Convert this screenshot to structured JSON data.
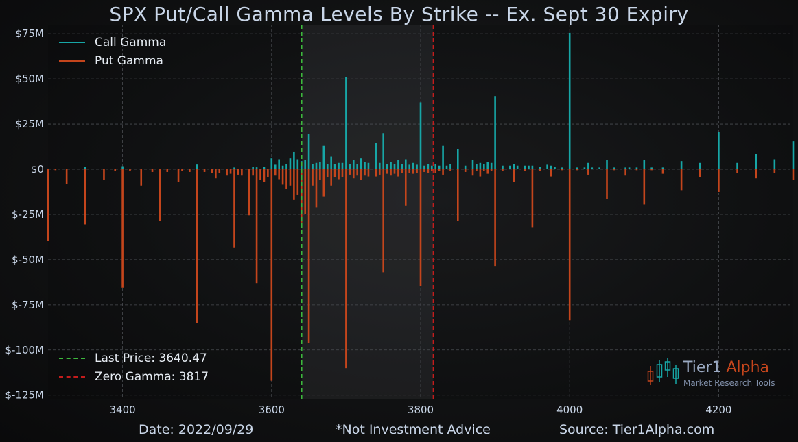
{
  "chart_data": {
    "type": "bar",
    "title": "SPX Put/Call Gamma Levels By Strike -- Ex. Sept 30 Expiry",
    "xlabel": "",
    "ylabel": "",
    "xlim": [
      3300,
      4300
    ],
    "ylim": [
      -127,
      80
    ],
    "x_ticks": [
      3400,
      3600,
      3800,
      4000,
      4200
    ],
    "y_ticks": [
      {
        "value": 75,
        "label": "$75M"
      },
      {
        "value": 50,
        "label": "$50M"
      },
      {
        "value": 25,
        "label": "$25M"
      },
      {
        "value": 0,
        "label": "$0"
      },
      {
        "value": -25,
        "label": "$-25M"
      },
      {
        "value": -50,
        "label": "$-50M"
      },
      {
        "value": -75,
        "label": "$-75M"
      },
      {
        "value": -100,
        "label": "$-100M"
      },
      {
        "value": -125,
        "label": "$-125M"
      }
    ],
    "grid": true,
    "legend_position": "top-left",
    "series": [
      {
        "name": "Call Gamma",
        "color": "#17a6a6",
        "points": [
          [
            3300,
            0.4
          ],
          [
            3350,
            1.5
          ],
          [
            3400,
            1.7
          ],
          [
            3500,
            2.6
          ],
          [
            3550,
            1
          ],
          [
            3575,
            1.3
          ],
          [
            3580,
            1.1
          ],
          [
            3590,
            1.3
          ],
          [
            3600,
            6
          ],
          [
            3605,
            2.5
          ],
          [
            3610,
            5.5
          ],
          [
            3615,
            2
          ],
          [
            3620,
            3
          ],
          [
            3625,
            6
          ],
          [
            3630,
            9.5
          ],
          [
            3635,
            5.5
          ],
          [
            3640,
            4.5
          ],
          [
            3645,
            5
          ],
          [
            3650,
            19.5
          ],
          [
            3655,
            3
          ],
          [
            3660,
            3.5
          ],
          [
            3665,
            4
          ],
          [
            3670,
            13
          ],
          [
            3675,
            3
          ],
          [
            3680,
            7
          ],
          [
            3685,
            3
          ],
          [
            3690,
            3.5
          ],
          [
            3695,
            3.5
          ],
          [
            3700,
            51
          ],
          [
            3705,
            3
          ],
          [
            3710,
            5
          ],
          [
            3715,
            3
          ],
          [
            3720,
            6
          ],
          [
            3725,
            4
          ],
          [
            3730,
            3.5
          ],
          [
            3740,
            14.5
          ],
          [
            3745,
            3.5
          ],
          [
            3750,
            20
          ],
          [
            3755,
            3
          ],
          [
            3760,
            4
          ],
          [
            3765,
            3
          ],
          [
            3770,
            5
          ],
          [
            3775,
            3
          ],
          [
            3780,
            5.5
          ],
          [
            3785,
            2.5
          ],
          [
            3790,
            3.5
          ],
          [
            3795,
            2.5
          ],
          [
            3800,
            37
          ],
          [
            3805,
            2
          ],
          [
            3810,
            3
          ],
          [
            3815,
            2
          ],
          [
            3820,
            3
          ],
          [
            3825,
            2
          ],
          [
            3830,
            13
          ],
          [
            3835,
            2
          ],
          [
            3840,
            3
          ],
          [
            3850,
            11
          ],
          [
            3860,
            2
          ],
          [
            3870,
            5
          ],
          [
            3875,
            3
          ],
          [
            3880,
            3.5
          ],
          [
            3885,
            3
          ],
          [
            3890,
            4
          ],
          [
            3895,
            3.5
          ],
          [
            3900,
            40.5
          ],
          [
            3910,
            2
          ],
          [
            3920,
            2
          ],
          [
            3925,
            3
          ],
          [
            3930,
            2
          ],
          [
            3940,
            2
          ],
          [
            3945,
            2
          ],
          [
            3950,
            2
          ],
          [
            3960,
            1.5
          ],
          [
            3970,
            2.5
          ],
          [
            3975,
            2
          ],
          [
            3980,
            1.5
          ],
          [
            3990,
            1
          ],
          [
            4000,
            75.5
          ],
          [
            4010,
            1
          ],
          [
            4020,
            1
          ],
          [
            4025,
            3.5
          ],
          [
            4030,
            1
          ],
          [
            4040,
            1
          ],
          [
            4050,
            5
          ],
          [
            4060,
            1
          ],
          [
            4075,
            1
          ],
          [
            4080,
            1
          ],
          [
            4090,
            1
          ],
          [
            4100,
            5
          ],
          [
            4110,
            1
          ],
          [
            4125,
            1
          ],
          [
            4150,
            4.5
          ],
          [
            4175,
            3.5
          ],
          [
            4200,
            20.5
          ],
          [
            4225,
            3.5
          ],
          [
            4250,
            8.5
          ],
          [
            4275,
            5.5
          ],
          [
            4300,
            15.5
          ]
        ]
      },
      {
        "name": "Put Gamma",
        "color": "#c4451c",
        "points": [
          [
            3300,
            -39.5
          ],
          [
            3310,
            -0.5
          ],
          [
            3325,
            -8
          ],
          [
            3350,
            -30.5
          ],
          [
            3375,
            -6
          ],
          [
            3390,
            -1
          ],
          [
            3400,
            -65.5
          ],
          [
            3410,
            -1
          ],
          [
            3425,
            -9
          ],
          [
            3440,
            -1.5
          ],
          [
            3450,
            -28.5
          ],
          [
            3460,
            -1.5
          ],
          [
            3475,
            -7
          ],
          [
            3480,
            -1
          ],
          [
            3490,
            -1.5
          ],
          [
            3500,
            -85
          ],
          [
            3510,
            -1.5
          ],
          [
            3520,
            -2
          ],
          [
            3525,
            -5
          ],
          [
            3530,
            -2
          ],
          [
            3540,
            -3.5
          ],
          [
            3545,
            -2.5
          ],
          [
            3550,
            -43.5
          ],
          [
            3555,
            -3
          ],
          [
            3560,
            -3.5
          ],
          [
            3570,
            -25.5
          ],
          [
            3575,
            -3.5
          ],
          [
            3580,
            -63
          ],
          [
            3585,
            -6
          ],
          [
            3590,
            -7
          ],
          [
            3595,
            -4.5
          ],
          [
            3600,
            -117
          ],
          [
            3605,
            -3.5
          ],
          [
            3610,
            -5.5
          ],
          [
            3615,
            -8.5
          ],
          [
            3620,
            -11
          ],
          [
            3625,
            -9
          ],
          [
            3630,
            -17
          ],
          [
            3635,
            -14
          ],
          [
            3640,
            -29.5
          ],
          [
            3645,
            -25
          ],
          [
            3650,
            -96
          ],
          [
            3655,
            -9
          ],
          [
            3660,
            -21
          ],
          [
            3665,
            -6
          ],
          [
            3670,
            -15
          ],
          [
            3675,
            -4.5
          ],
          [
            3680,
            -9
          ],
          [
            3685,
            -4.5
          ],
          [
            3690,
            -5.5
          ],
          [
            3695,
            -4.5
          ],
          [
            3700,
            -110
          ],
          [
            3705,
            -3
          ],
          [
            3710,
            -5
          ],
          [
            3715,
            -3.5
          ],
          [
            3720,
            -6
          ],
          [
            3725,
            -3.5
          ],
          [
            3730,
            -4
          ],
          [
            3740,
            -4
          ],
          [
            3745,
            -3
          ],
          [
            3750,
            -57
          ],
          [
            3755,
            -2.5
          ],
          [
            3760,
            -3.5
          ],
          [
            3765,
            -2.5
          ],
          [
            3770,
            -4
          ],
          [
            3775,
            -2
          ],
          [
            3780,
            -20
          ],
          [
            3785,
            -2
          ],
          [
            3790,
            -2.5
          ],
          [
            3795,
            -2
          ],
          [
            3800,
            -64.5
          ],
          [
            3805,
            -1.5
          ],
          [
            3810,
            -2
          ],
          [
            3815,
            -1
          ],
          [
            3820,
            -2
          ],
          [
            3825,
            -1
          ],
          [
            3830,
            -3
          ],
          [
            3840,
            -1
          ],
          [
            3850,
            -28.5
          ],
          [
            3860,
            -1.5
          ],
          [
            3870,
            -3.5
          ],
          [
            3875,
            -1
          ],
          [
            3880,
            -4
          ],
          [
            3885,
            -1
          ],
          [
            3890,
            -2.5
          ],
          [
            3895,
            -1
          ],
          [
            3900,
            -53.5
          ],
          [
            3910,
            -1
          ],
          [
            3925,
            -7
          ],
          [
            3940,
            -1
          ],
          [
            3950,
            -32
          ],
          [
            3960,
            -1
          ],
          [
            3975,
            -4
          ],
          [
            3990,
            -0.5
          ],
          [
            4000,
            -83.5
          ],
          [
            4010,
            -0.5
          ],
          [
            4025,
            -3
          ],
          [
            4050,
            -16.5
          ],
          [
            4060,
            -0.5
          ],
          [
            4075,
            -3.5
          ],
          [
            4090,
            -0.5
          ],
          [
            4100,
            -19.5
          ],
          [
            4110,
            -0.5
          ],
          [
            4125,
            -2.5
          ],
          [
            4150,
            -11.5
          ],
          [
            4175,
            -4.5
          ],
          [
            4200,
            -12.5
          ],
          [
            4225,
            -2
          ],
          [
            4250,
            -5
          ],
          [
            4275,
            -2
          ],
          [
            4300,
            -6
          ]
        ]
      }
    ],
    "reference_lines": [
      {
        "name": "Last Price",
        "label": "Last Price: 3640.47",
        "value": 3640.47,
        "color": "#3db83d",
        "style": "dashed"
      },
      {
        "name": "Zero Gamma",
        "label": "Zero Gamma:  3817",
        "value": 3817,
        "color": "#c41c1c",
        "style": "dashed"
      }
    ],
    "shaded_range": [
      3640.47,
      3817
    ]
  },
  "footer": {
    "date": "Date: 2022/09/29",
    "disclaimer": "*Not Investment Advice",
    "source": "Source: Tier1Alpha.com"
  },
  "logo": {
    "name_part1": "Tier1",
    "name_part2": "Alpha",
    "tagline": "Market  Research Tools"
  }
}
